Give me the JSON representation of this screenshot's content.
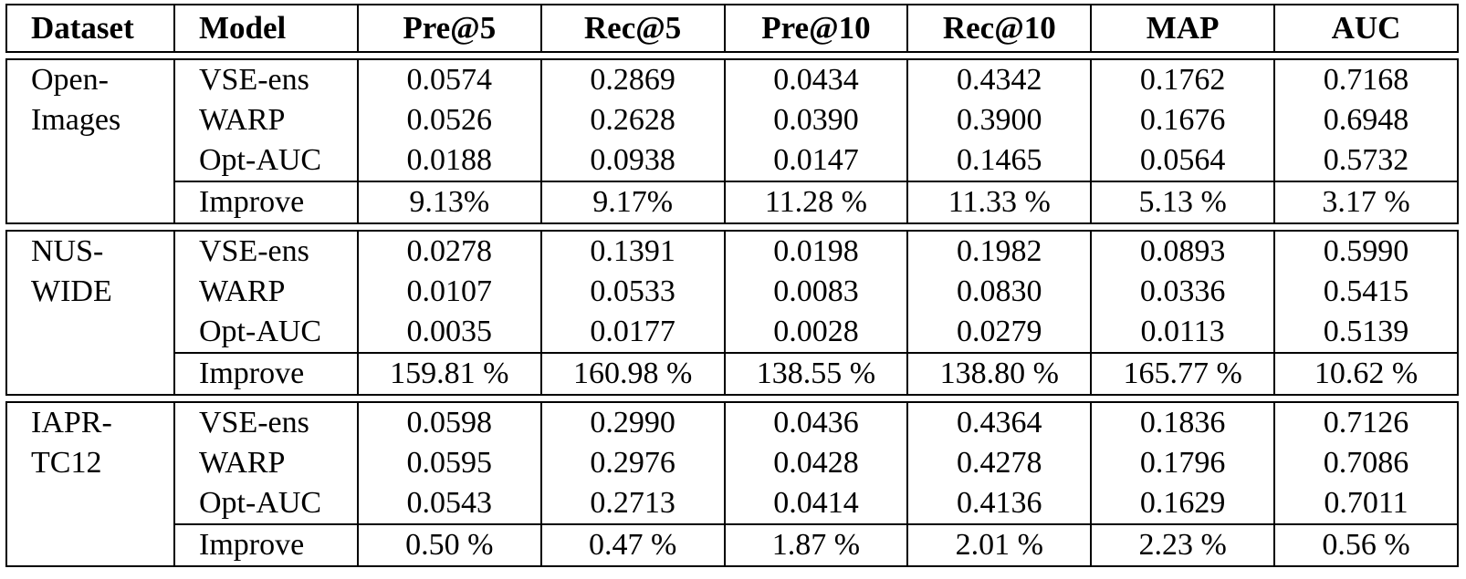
{
  "table": {
    "columns": [
      "Dataset",
      "Model",
      "Pre@5",
      "Rec@5",
      "Pre@10",
      "Rec@10",
      "MAP",
      "AUC"
    ],
    "blocks": [
      {
        "dataset_line1": "Open-",
        "dataset_line2": "Images",
        "rows": [
          {
            "model": "VSE-ens",
            "values": [
              "0.0574",
              "0.2869",
              "0.0434",
              "0.4342",
              "0.1762",
              "0.7168"
            ]
          },
          {
            "model": "WARP",
            "values": [
              "0.0526",
              "0.2628",
              "0.0390",
              "0.3900",
              "0.1676",
              "0.6948"
            ]
          },
          {
            "model": "Opt-AUC",
            "values": [
              "0.0188",
              "0.0938",
              "0.0147",
              "0.1465",
              "0.0564",
              "0.5732"
            ]
          }
        ],
        "improve": {
          "model": "Improve",
          "values": [
            "9.13%",
            "9.17%",
            "11.28 %",
            "11.33 %",
            "5.13 %",
            "3.17 %"
          ]
        }
      },
      {
        "dataset_line1": "NUS-",
        "dataset_line2": "WIDE",
        "rows": [
          {
            "model": "VSE-ens",
            "values": [
              "0.0278",
              "0.1391",
              "0.0198",
              "0.1982",
              "0.0893",
              "0.5990"
            ]
          },
          {
            "model": "WARP",
            "values": [
              "0.0107",
              "0.0533",
              "0.0083",
              "0.0830",
              "0.0336",
              "0.5415"
            ]
          },
          {
            "model": "Opt-AUC",
            "values": [
              "0.0035",
              "0.0177",
              "0.0028",
              "0.0279",
              "0.0113",
              "0.5139"
            ]
          }
        ],
        "improve": {
          "model": "Improve",
          "values": [
            "159.81 %",
            "160.98 %",
            "138.55 %",
            "138.80 %",
            "165.77 %",
            "10.62 %"
          ]
        }
      },
      {
        "dataset_line1": "IAPR-",
        "dataset_line2": "TC12",
        "rows": [
          {
            "model": "VSE-ens",
            "values": [
              "0.0598",
              "0.2990",
              "0.0436",
              "0.4364",
              "0.1836",
              "0.7126"
            ]
          },
          {
            "model": "WARP",
            "values": [
              "0.0595",
              "0.2976",
              "0.0428",
              "0.4278",
              "0.1796",
              "0.7086"
            ]
          },
          {
            "model": "Opt-AUC",
            "values": [
              "0.0543",
              "0.2713",
              "0.0414",
              "0.4136",
              "0.1629",
              "0.7011"
            ]
          }
        ],
        "improve": {
          "model": "Improve",
          "values": [
            "0.50 %",
            "0.47 %",
            "1.87 %",
            "2.01 %",
            "2.23 %",
            "0.56 %"
          ]
        }
      }
    ]
  }
}
